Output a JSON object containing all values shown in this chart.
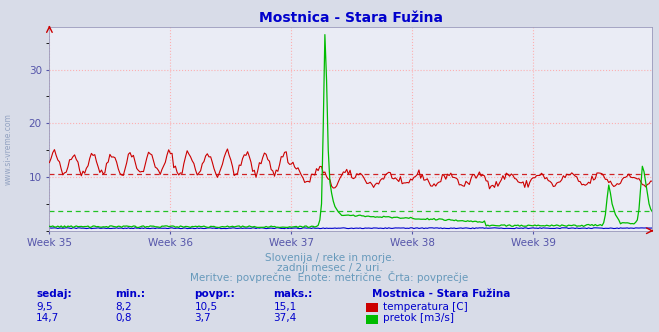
{
  "title": "Mostnica - Stara Fužina",
  "title_color": "#0000cc",
  "bg_color": "#d8dce8",
  "plot_bg_color": "#eaecf5",
  "grid_color": "#ffaaaa",
  "xlabel_color": "#5555aa",
  "ylim": [
    0,
    38
  ],
  "yticks": [
    10,
    20,
    30
  ],
  "n_points": 360,
  "temp_color": "#cc0000",
  "flow_color": "#00bb00",
  "level_color": "#0000cc",
  "temp_avg": 10.5,
  "flow_avg": 3.7,
  "week_positions": [
    0,
    72,
    144,
    216,
    288
  ],
  "week_labels": [
    "Week 35",
    "Week 36",
    "Week 37",
    "Week 38",
    "Week 39"
  ],
  "footer_line1": "Slovenija / reke in morje.",
  "footer_line2": "zadnji mesec / 2 uri.",
  "footer_line3": "Meritve: povprečne  Enote: metrične  Črta: povprečje",
  "footer_color": "#6699bb",
  "table_color": "#0000cc",
  "table_header": [
    "sedaj:",
    "min.:",
    "povpr.:",
    "maks.:"
  ],
  "table_row1": [
    "9,5",
    "8,2",
    "10,5",
    "15,1"
  ],
  "table_row2": [
    "14,7",
    "0,8",
    "3,7",
    "37,4"
  ],
  "station_label": "Mostnica - Stara Fužina",
  "legend_temp": "temperatura [C]",
  "legend_flow": "pretok [m3/s]",
  "watermark": "www.si-vreme.com"
}
